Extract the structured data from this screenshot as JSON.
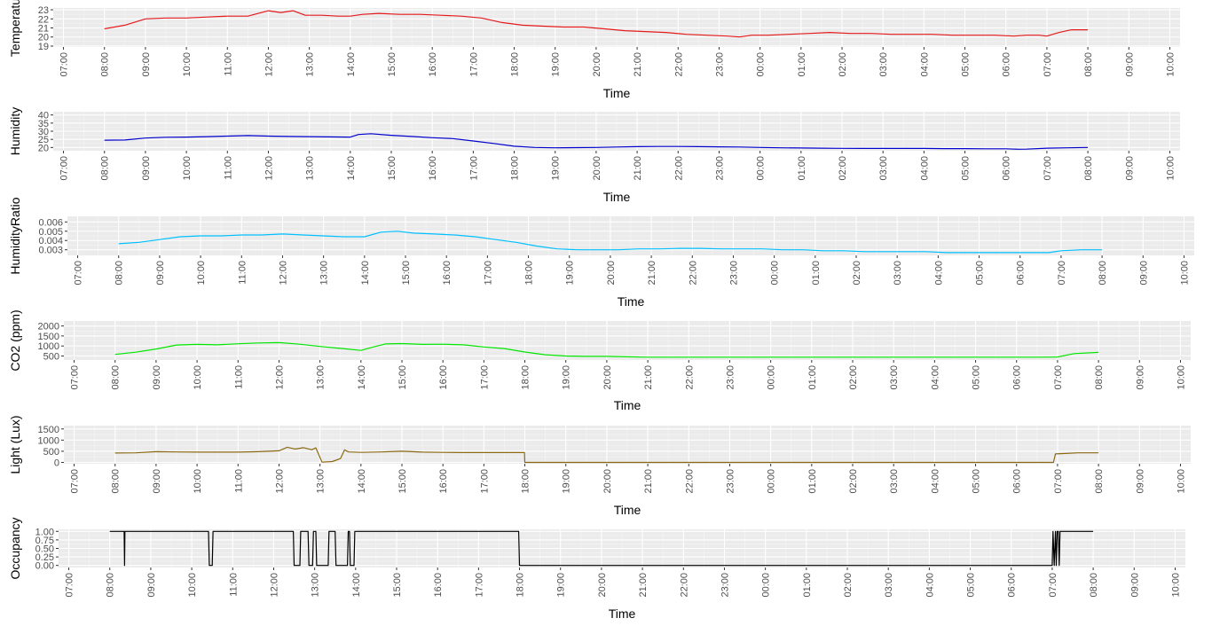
{
  "chart_data": [
    {
      "type": "line",
      "ylabel": "Temperatu",
      "xlabel": "Time",
      "color": "#e41a1c",
      "yticks": [
        19,
        20,
        21,
        22,
        23
      ],
      "ylim": [
        18.9,
        23.2
      ],
      "points": [
        [
          1.0,
          20.9
        ],
        [
          1.5,
          21.3
        ],
        [
          2.0,
          22.0
        ],
        [
          2.5,
          22.1
        ],
        [
          3.0,
          22.1
        ],
        [
          3.5,
          22.2
        ],
        [
          4.0,
          22.3
        ],
        [
          4.5,
          22.3
        ],
        [
          5.0,
          22.9
        ],
        [
          5.3,
          22.7
        ],
        [
          5.6,
          22.9
        ],
        [
          5.9,
          22.4
        ],
        [
          6.3,
          22.4
        ],
        [
          6.7,
          22.3
        ],
        [
          7.0,
          22.3
        ],
        [
          7.3,
          22.5
        ],
        [
          7.7,
          22.6
        ],
        [
          8.2,
          22.5
        ],
        [
          8.7,
          22.5
        ],
        [
          9.2,
          22.4
        ],
        [
          9.7,
          22.3
        ],
        [
          10.2,
          22.1
        ],
        [
          10.7,
          21.6
        ],
        [
          11.2,
          21.3
        ],
        [
          11.7,
          21.2
        ],
        [
          12.2,
          21.1
        ],
        [
          12.7,
          21.1
        ],
        [
          13.2,
          20.9
        ],
        [
          13.7,
          20.7
        ],
        [
          14.2,
          20.6
        ],
        [
          14.7,
          20.5
        ],
        [
          15.2,
          20.3
        ],
        [
          15.7,
          20.2
        ],
        [
          16.2,
          20.1
        ],
        [
          16.5,
          20.0
        ],
        [
          16.8,
          20.2
        ],
        [
          17.2,
          20.2
        ],
        [
          17.7,
          20.3
        ],
        [
          18.2,
          20.4
        ],
        [
          18.7,
          20.5
        ],
        [
          19.2,
          20.4
        ],
        [
          19.7,
          20.4
        ],
        [
          20.2,
          20.3
        ],
        [
          20.7,
          20.3
        ],
        [
          21.2,
          20.3
        ],
        [
          21.7,
          20.2
        ],
        [
          22.2,
          20.2
        ],
        [
          22.7,
          20.2
        ],
        [
          23.2,
          20.1
        ],
        [
          23.5,
          20.2
        ],
        [
          23.8,
          20.2
        ],
        [
          24.0,
          20.1
        ],
        [
          24.3,
          20.5
        ],
        [
          24.6,
          20.8
        ],
        [
          25.0,
          20.8
        ]
      ]
    },
    {
      "type": "line",
      "ylabel": "Humidity",
      "xlabel": "Time",
      "color": "#0000cd",
      "yticks": [
        20,
        25,
        30,
        35,
        40
      ],
      "ylim": [
        18.0,
        42.0
      ],
      "points": [
        [
          1.0,
          24.5
        ],
        [
          1.5,
          24.6
        ],
        [
          2.0,
          25.8
        ],
        [
          2.5,
          26.3
        ],
        [
          3.0,
          26.4
        ],
        [
          3.5,
          26.7
        ],
        [
          4.0,
          27.0
        ],
        [
          4.5,
          27.3
        ],
        [
          5.0,
          27.0
        ],
        [
          5.5,
          26.8
        ],
        [
          6.0,
          26.7
        ],
        [
          6.5,
          26.5
        ],
        [
          7.0,
          26.4
        ],
        [
          7.2,
          28.0
        ],
        [
          7.5,
          28.5
        ],
        [
          8.0,
          27.5
        ],
        [
          8.5,
          26.8
        ],
        [
          9.0,
          26.0
        ],
        [
          9.5,
          25.5
        ],
        [
          10.0,
          24.0
        ],
        [
          10.5,
          22.5
        ],
        [
          11.0,
          20.8
        ],
        [
          11.5,
          20.0
        ],
        [
          12.0,
          19.8
        ],
        [
          12.5,
          19.9
        ],
        [
          13.0,
          20.0
        ],
        [
          13.5,
          20.3
        ],
        [
          14.0,
          20.5
        ],
        [
          14.5,
          20.6
        ],
        [
          15.0,
          20.6
        ],
        [
          15.5,
          20.5
        ],
        [
          16.0,
          20.4
        ],
        [
          16.5,
          20.3
        ],
        [
          17.0,
          20.0
        ],
        [
          17.5,
          19.8
        ],
        [
          18.0,
          19.7
        ],
        [
          18.5,
          19.6
        ],
        [
          19.0,
          19.5
        ],
        [
          19.5,
          19.4
        ],
        [
          20.0,
          19.4
        ],
        [
          20.5,
          19.4
        ],
        [
          21.0,
          19.4
        ],
        [
          21.5,
          19.3
        ],
        [
          22.0,
          19.3
        ],
        [
          22.5,
          19.2
        ],
        [
          23.0,
          19.2
        ],
        [
          23.3,
          18.9
        ],
        [
          23.5,
          19.0
        ],
        [
          24.0,
          19.6
        ],
        [
          24.5,
          19.8
        ],
        [
          25.0,
          20.0
        ]
      ]
    },
    {
      "type": "line",
      "ylabel": "HumidityRatio",
      "xlabel": "Time",
      "color": "#00bfff",
      "yticks": [
        0.003,
        0.004,
        0.005,
        0.006
      ],
      "ylim": [
        0.0024,
        0.0066
      ],
      "points": [
        [
          1.0,
          0.00365
        ],
        [
          1.5,
          0.0038
        ],
        [
          2.0,
          0.0041
        ],
        [
          2.5,
          0.0044
        ],
        [
          3.0,
          0.0045
        ],
        [
          3.5,
          0.0045
        ],
        [
          4.0,
          0.0046
        ],
        [
          4.5,
          0.0046
        ],
        [
          5.0,
          0.0047
        ],
        [
          5.5,
          0.0046
        ],
        [
          6.0,
          0.0045
        ],
        [
          6.5,
          0.0044
        ],
        [
          7.0,
          0.0044
        ],
        [
          7.4,
          0.0049
        ],
        [
          7.8,
          0.005
        ],
        [
          8.2,
          0.0048
        ],
        [
          8.7,
          0.0047
        ],
        [
          9.2,
          0.0046
        ],
        [
          9.7,
          0.0044
        ],
        [
          10.2,
          0.0041
        ],
        [
          10.7,
          0.0038
        ],
        [
          11.2,
          0.0034
        ],
        [
          11.7,
          0.0031
        ],
        [
          12.2,
          0.003
        ],
        [
          12.7,
          0.003
        ],
        [
          13.2,
          0.003
        ],
        [
          13.7,
          0.0031
        ],
        [
          14.2,
          0.0031
        ],
        [
          14.7,
          0.00315
        ],
        [
          15.2,
          0.00315
        ],
        [
          15.7,
          0.0031
        ],
        [
          16.2,
          0.0031
        ],
        [
          16.7,
          0.0031
        ],
        [
          17.2,
          0.003
        ],
        [
          17.7,
          0.003
        ],
        [
          18.2,
          0.0029
        ],
        [
          18.7,
          0.0029
        ],
        [
          19.2,
          0.0028
        ],
        [
          19.7,
          0.0028
        ],
        [
          20.2,
          0.0028
        ],
        [
          20.7,
          0.0028
        ],
        [
          21.2,
          0.0027
        ],
        [
          21.7,
          0.0027
        ],
        [
          22.2,
          0.0027
        ],
        [
          22.7,
          0.0027
        ],
        [
          23.2,
          0.0027
        ],
        [
          23.7,
          0.0027
        ],
        [
          24.0,
          0.0029
        ],
        [
          24.5,
          0.003
        ],
        [
          25.0,
          0.003
        ]
      ]
    },
    {
      "type": "line",
      "ylabel": "CO2 (ppm)",
      "xlabel": "Time",
      "color": "#00e600",
      "yticks": [
        500,
        1000,
        1500,
        2000
      ],
      "ylim": [
        300,
        2250
      ],
      "points": [
        [
          1.0,
          580
        ],
        [
          1.5,
          690
        ],
        [
          2.0,
          850
        ],
        [
          2.5,
          1050
        ],
        [
          3.0,
          1080
        ],
        [
          3.5,
          1060
        ],
        [
          4.0,
          1110
        ],
        [
          4.5,
          1150
        ],
        [
          5.0,
          1170
        ],
        [
          5.5,
          1090
        ],
        [
          6.0,
          980
        ],
        [
          6.5,
          880
        ],
        [
          7.0,
          780
        ],
        [
          7.3,
          950
        ],
        [
          7.6,
          1100
        ],
        [
          8.0,
          1120
        ],
        [
          8.5,
          1080
        ],
        [
          9.0,
          1090
        ],
        [
          9.5,
          1060
        ],
        [
          10.0,
          950
        ],
        [
          10.5,
          870
        ],
        [
          11.0,
          700
        ],
        [
          11.5,
          560
        ],
        [
          12.0,
          500
        ],
        [
          12.5,
          480
        ],
        [
          13.0,
          480
        ],
        [
          13.5,
          460
        ],
        [
          14.0,
          440
        ],
        [
          14.5,
          440
        ],
        [
          15.0,
          440
        ],
        [
          15.5,
          440
        ],
        [
          16.0,
          440
        ],
        [
          16.5,
          440
        ],
        [
          17.0,
          440
        ],
        [
          17.5,
          440
        ],
        [
          18.0,
          440
        ],
        [
          18.5,
          440
        ],
        [
          19.0,
          440
        ],
        [
          19.5,
          440
        ],
        [
          20.0,
          440
        ],
        [
          20.5,
          440
        ],
        [
          21.0,
          440
        ],
        [
          21.5,
          440
        ],
        [
          22.0,
          440
        ],
        [
          22.5,
          440
        ],
        [
          23.0,
          440
        ],
        [
          23.5,
          440
        ],
        [
          24.0,
          450
        ],
        [
          24.4,
          620
        ],
        [
          25.0,
          680
        ]
      ]
    },
    {
      "type": "line",
      "ylabel": "Light (Lux)",
      "xlabel": "Time",
      "color": "#8b6914",
      "yticks": [
        0,
        500,
        1000,
        1500
      ],
      "ylim": [
        -60,
        1650
      ],
      "points": [
        [
          1.0,
          420
        ],
        [
          1.5,
          430
        ],
        [
          2.0,
          480
        ],
        [
          2.5,
          470
        ],
        [
          3.0,
          460
        ],
        [
          3.5,
          460
        ],
        [
          4.0,
          460
        ],
        [
          4.5,
          480
        ],
        [
          5.0,
          520
        ],
        [
          5.2,
          680
        ],
        [
          5.4,
          600
        ],
        [
          5.6,
          660
        ],
        [
          5.8,
          570
        ],
        [
          5.9,
          650
        ],
        [
          6.0,
          230
        ],
        [
          6.05,
          10
        ],
        [
          6.3,
          40
        ],
        [
          6.5,
          170
        ],
        [
          6.6,
          560
        ],
        [
          6.7,
          470
        ],
        [
          7.0,
          450
        ],
        [
          7.5,
          470
        ],
        [
          8.0,
          500
        ],
        [
          8.5,
          460
        ],
        [
          9.0,
          450
        ],
        [
          9.5,
          440
        ],
        [
          10.0,
          440
        ],
        [
          10.5,
          440
        ],
        [
          10.99,
          440
        ],
        [
          11.0,
          0
        ],
        [
          11.5,
          0
        ],
        [
          12.0,
          0
        ],
        [
          13.0,
          0
        ],
        [
          14.0,
          0
        ],
        [
          15.0,
          0
        ],
        [
          16.0,
          0
        ],
        [
          17.0,
          0
        ],
        [
          18.0,
          0
        ],
        [
          19.0,
          0
        ],
        [
          20.0,
          0
        ],
        [
          21.0,
          0
        ],
        [
          22.0,
          0
        ],
        [
          23.0,
          0
        ],
        [
          23.9,
          0
        ],
        [
          23.95,
          380
        ],
        [
          24.2,
          400
        ],
        [
          24.5,
          430
        ],
        [
          25.0,
          430
        ]
      ]
    },
    {
      "type": "line",
      "ylabel": "Occupancy",
      "xlabel": "Time",
      "color": "#000000",
      "yticks": [
        0.0,
        0.25,
        0.5,
        0.75,
        1.0
      ],
      "ytick_labels": [
        "0.00",
        "0.25",
        "0.50",
        "0.75",
        "1.00"
      ],
      "ylim": [
        -0.06,
        1.06
      ],
      "points": [
        [
          1.0,
          1
        ],
        [
          1.35,
          1
        ],
        [
          1.36,
          0
        ],
        [
          1.37,
          1
        ],
        [
          3.41,
          1
        ],
        [
          3.43,
          0
        ],
        [
          3.5,
          0
        ],
        [
          3.52,
          1
        ],
        [
          5.48,
          1
        ],
        [
          5.5,
          0
        ],
        [
          5.64,
          0
        ],
        [
          5.66,
          1
        ],
        [
          5.84,
          1
        ],
        [
          5.86,
          0
        ],
        [
          5.95,
          0
        ],
        [
          5.97,
          1
        ],
        [
          6.03,
          1
        ],
        [
          6.05,
          0
        ],
        [
          6.33,
          0
        ],
        [
          6.35,
          1
        ],
        [
          6.5,
          1
        ],
        [
          6.52,
          0
        ],
        [
          6.8,
          0
        ],
        [
          6.82,
          1
        ],
        [
          6.85,
          1
        ],
        [
          6.87,
          0
        ],
        [
          6.96,
          0
        ],
        [
          6.98,
          1
        ],
        [
          10.98,
          1
        ],
        [
          11.0,
          0
        ],
        [
          24.0,
          0
        ],
        [
          24.02,
          1
        ],
        [
          24.05,
          0
        ],
        [
          24.08,
          1
        ],
        [
          24.1,
          0
        ],
        [
          24.12,
          1
        ],
        [
          24.15,
          1
        ],
        [
          24.17,
          0
        ],
        [
          24.19,
          1
        ],
        [
          25.0,
          1
        ]
      ]
    }
  ],
  "time_axis": {
    "ticks": [
      "07:00",
      "08:00",
      "09:00",
      "10:00",
      "11:00",
      "12:00",
      "13:00",
      "14:00",
      "15:00",
      "16:00",
      "17:00",
      "18:00",
      "19:00",
      "20:00",
      "21:00",
      "22:00",
      "23:00",
      "00:00",
      "01:00",
      "02:00",
      "03:00",
      "04:00",
      "05:00",
      "06:00",
      "07:00",
      "08:00",
      "09:00",
      "10:00"
    ]
  }
}
